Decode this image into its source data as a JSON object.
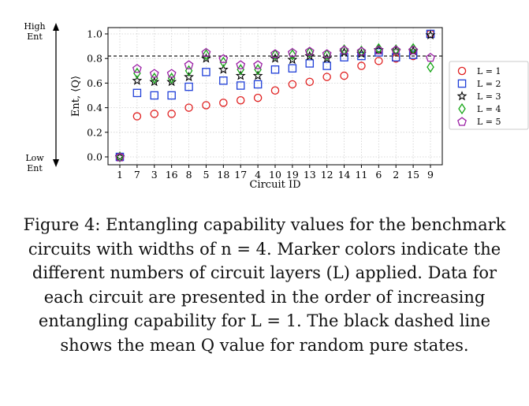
{
  "chart_data": {
    "type": "scatter",
    "xlabel": "Circuit ID",
    "ylabel": "Ent, ⟨Q⟩",
    "ylim": [
      0,
      1.0
    ],
    "yticks": [
      "0.0",
      "0.2",
      "0.4",
      "0.6",
      "0.8",
      "1.0"
    ],
    "categories": [
      "1",
      "7",
      "3",
      "16",
      "8",
      "5",
      "18",
      "17",
      "4",
      "10",
      "19",
      "13",
      "12",
      "14",
      "11",
      "6",
      "2",
      "15",
      "9"
    ],
    "reference_line": {
      "value": 0.82,
      "style": "dashed",
      "color": "#000000"
    },
    "side_labels": {
      "top_line1": "High",
      "top_line2": "Ent",
      "bottom_line1": "Low",
      "bottom_line2": "Ent"
    },
    "legend_position": "right",
    "series": [
      {
        "name": "L = 1",
        "marker": "circle",
        "color": "#e02020",
        "values": [
          0.0,
          0.33,
          0.35,
          0.35,
          0.4,
          0.42,
          0.44,
          0.46,
          0.48,
          0.54,
          0.59,
          0.61,
          0.65,
          0.66,
          0.74,
          0.78,
          0.8,
          0.82,
          1.0
        ]
      },
      {
        "name": "L = 2",
        "marker": "square",
        "color": "#1f3fd8",
        "values": [
          0.0,
          0.52,
          0.5,
          0.5,
          0.57,
          0.69,
          0.62,
          0.58,
          0.59,
          0.71,
          0.72,
          0.76,
          0.74,
          0.81,
          0.82,
          0.85,
          0.81,
          0.83,
          1.0
        ]
      },
      {
        "name": "L = 3",
        "marker": "star",
        "color": "#000000",
        "values": [
          0.0,
          0.62,
          0.61,
          0.61,
          0.65,
          0.8,
          0.71,
          0.66,
          0.66,
          0.8,
          0.79,
          0.82,
          0.8,
          0.85,
          0.84,
          0.87,
          0.86,
          0.86,
          0.99
        ]
      },
      {
        "name": "L = 4",
        "marker": "diamond",
        "color": "#15a515",
        "values": [
          0.0,
          0.68,
          0.64,
          0.64,
          0.7,
          0.83,
          0.77,
          0.71,
          0.71,
          0.83,
          0.83,
          0.85,
          0.83,
          0.87,
          0.86,
          0.88,
          0.87,
          0.88,
          0.73
        ]
      },
      {
        "name": "L = 5",
        "marker": "pentagon",
        "color": "#9b1fa5",
        "values": [
          0.0,
          0.72,
          0.68,
          0.68,
          0.75,
          0.85,
          0.8,
          0.75,
          0.75,
          0.84,
          0.85,
          0.86,
          0.84,
          0.87,
          0.86,
          0.87,
          0.87,
          0.87,
          0.81
        ]
      }
    ]
  },
  "caption": "Figure 4: Entangling capability values for the benchmark circuits with widths of n = 4. Marker colors indicate the different numbers of circuit layers (L) applied. Data for each circuit are presented in the order of increasing entangling capability for L = 1. The black dashed line shows the mean Q value for random pure states."
}
